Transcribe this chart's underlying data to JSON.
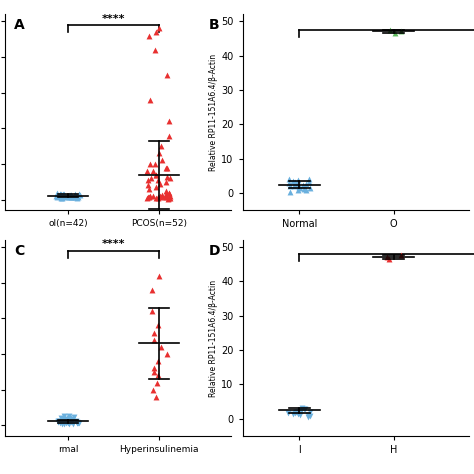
{
  "panel_A": {
    "label": "A",
    "group1_label": "ol(n=42)",
    "group2_label": "PCOS(n=52)",
    "group1_color": "#6ab0de",
    "group2_color": "#e83030",
    "sig_text": "****",
    "ylim": [
      -3,
      52
    ],
    "yticks": [
      0,
      10,
      20,
      30,
      40,
      50
    ],
    "group1_x": 1,
    "group2_x": 2,
    "xlim": [
      0.3,
      2.8
    ],
    "group1_mean": 1.1,
    "group1_sd": 0.45,
    "group2_mean": 7.0,
    "group2_sd": 9.5,
    "group1_points": [
      0.5,
      0.6,
      0.7,
      0.7,
      0.8,
      0.8,
      0.9,
      0.9,
      0.9,
      1.0,
      1.0,
      1.0,
      1.0,
      1.0,
      1.1,
      1.1,
      1.1,
      1.2,
      1.2,
      1.2,
      1.3,
      1.3,
      1.4,
      1.4,
      1.5,
      1.5,
      1.5,
      1.6,
      1.7,
      1.7,
      1.8,
      0.6,
      0.7,
      0.8,
      0.9,
      1.0,
      1.1,
      1.2,
      1.3,
      1.4,
      1.5,
      1.6
    ],
    "group2_points": [
      0.3,
      0.4,
      0.5,
      0.5,
      0.6,
      0.6,
      0.7,
      0.7,
      0.8,
      0.8,
      0.9,
      0.9,
      1.0,
      1.0,
      1.0,
      1.0,
      1.1,
      1.1,
      1.2,
      1.5,
      1.8,
      2.0,
      2.5,
      3.0,
      3.5,
      4.0,
      4.5,
      5.0,
      5.5,
      6.0,
      7.0,
      8.0,
      9.0,
      10.0,
      11.0,
      13.0,
      15.0,
      18.0,
      22.0,
      28.0,
      35.0,
      42.0,
      46.0,
      47.0,
      48.0,
      6.0,
      7.0,
      8.0,
      9.0,
      10.0,
      5.5,
      6.5
    ]
  },
  "panel_B": {
    "label": "B",
    "group1_label": "Normal",
    "group2_label": "O",
    "group1_color": "#6ab0de",
    "group2_color": "#5cb85c",
    "ylabel": "Relative RP11-151A6.4/β-Actin",
    "ylim": [
      -5,
      52
    ],
    "yticks": [
      0,
      10,
      20,
      30,
      40,
      50
    ],
    "xlim": [
      0.4,
      2.8
    ],
    "group1_mean": 2.5,
    "group1_sd": 1.0,
    "group2_mean": 47.0,
    "group2_sd": 0.5,
    "sig_y": 47.5,
    "group1_points": [
      0.5,
      0.8,
      1.0,
      1.2,
      1.4,
      1.6,
      1.8,
      2.0,
      2.0,
      2.2,
      2.4,
      2.6,
      2.8,
      3.0,
      3.2,
      3.4,
      3.6,
      3.8,
      4.0,
      4.2
    ],
    "group2_points": [
      46.5,
      47.0,
      47.5
    ]
  },
  "panel_C": {
    "label": "C",
    "group1_label": "rmal",
    "group2_label": "Hyperinsulinemia",
    "group1_color": "#6ab0de",
    "group2_color": "#e83030",
    "group1_marker": "v",
    "sig_text": "****",
    "ylim": [
      -3,
      52
    ],
    "yticks": [
      0,
      10,
      20,
      30,
      40,
      50
    ],
    "xlim": [
      0.3,
      2.8
    ],
    "group1_mean": 1.1,
    "group1_sd": 0.4,
    "group2_mean": 23.0,
    "group2_sd": 10.0,
    "group1_points": [
      0.3,
      0.4,
      0.5,
      0.6,
      0.7,
      0.7,
      0.8,
      0.8,
      0.9,
      0.9,
      1.0,
      1.0,
      1.0,
      1.1,
      1.1,
      1.2,
      1.3,
      1.4,
      1.5,
      1.6,
      1.7,
      1.8,
      1.9,
      2.0,
      2.2,
      2.4,
      2.6,
      0.5,
      0.6,
      0.7,
      0.8,
      0.9,
      1.0,
      1.1,
      1.2,
      1.3,
      1.5,
      2.5
    ],
    "group2_points": [
      8.0,
      10.0,
      12.0,
      14.0,
      15.0,
      16.0,
      18.0,
      20.0,
      22.0,
      24.0,
      26.0,
      28.0,
      32.0,
      38.0,
      42.0
    ]
  },
  "panel_D": {
    "label": "D",
    "group1_label": "l",
    "group2_label": "H",
    "group1_color": "#6ab0de",
    "group2_color": "#e83030",
    "group1_marker": "v",
    "ylabel": "Relative RP11-151A6.4/β-Actin",
    "ylim": [
      -5,
      52
    ],
    "yticks": [
      0,
      10,
      20,
      30,
      40,
      50
    ],
    "xlim": [
      0.4,
      2.8
    ],
    "sig_y": 48.0,
    "group1_mean": 2.5,
    "group1_sd": 0.8,
    "group2_mean": 47.0,
    "group2_sd": 0.5,
    "group1_points": [
      0.5,
      0.8,
      1.0,
      1.2,
      1.4,
      1.6,
      1.8,
      2.0,
      2.0,
      2.2,
      2.4,
      2.6,
      2.8,
      3.0,
      3.2,
      1.5,
      1.7,
      1.9,
      2.1
    ],
    "group2_points": [
      46.5,
      47.0,
      47.5
    ]
  },
  "background_color": "#ffffff"
}
